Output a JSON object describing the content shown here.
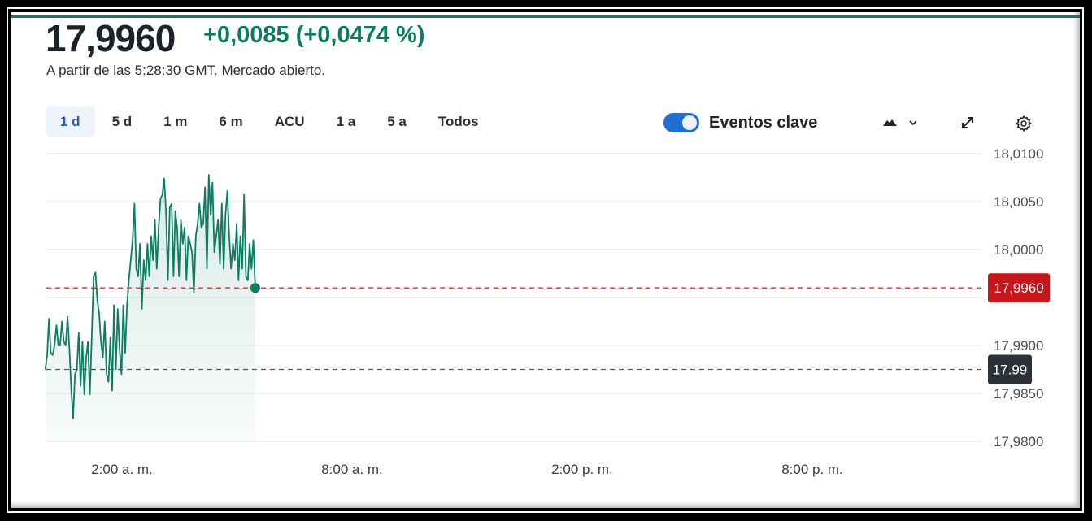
{
  "quote": {
    "price": "17,9960",
    "change": "+0,0085 (+0,0474 %)",
    "as_of": "A partir de las 5:28:30 GMT. Mercado abierto."
  },
  "ranges": [
    "1 d",
    "5 d",
    "1 m",
    "6 m",
    "ACU",
    "1 a",
    "5 a",
    "Todos"
  ],
  "active_range": "1 d",
  "toolbar": {
    "key_events_label": "Eventos clave",
    "key_events_on": true,
    "chart_type_icon": "mountain-icon",
    "expand_icon": "expand-arrows-icon",
    "settings_icon": "gear-icon"
  },
  "colors": {
    "line": "#0b7d62",
    "up": "#0b7d5e",
    "current_label": "#c8161d",
    "prev_close_label": "#2c3338",
    "toggle": "#1f6fd1"
  },
  "chart_data": {
    "type": "area",
    "x_start": "0:00",
    "x_end": "5:28:30",
    "x_ticks": [
      {
        "h": 2,
        "label": "2:00 a. m."
      },
      {
        "h": 8,
        "label": "8:00 a. m."
      },
      {
        "h": 14,
        "label": "2:00 p. m."
      },
      {
        "h": 20,
        "label": "8:00 p. m."
      }
    ],
    "y_ticks": [
      {
        "v": 18.01,
        "label": "18,0100"
      },
      {
        "v": 18.005,
        "label": "18,0050"
      },
      {
        "v": 18.0,
        "label": "18,0000"
      },
      {
        "v": 17.995,
        "label": ""
      },
      {
        "v": 17.99,
        "label": "17,9900"
      },
      {
        "v": 17.985,
        "label": "17,9850"
      },
      {
        "v": 17.98,
        "label": "17,9800"
      }
    ],
    "ylim": [
      17.98,
      18.01
    ],
    "grid": true,
    "current": {
      "value": 17.996,
      "label": "17,9960"
    },
    "previous_close": {
      "value": 17.9875,
      "label": "17.99"
    },
    "values": [
      17.9875,
      17.989,
      17.9928,
      17.9892,
      17.989,
      17.99,
      17.9921,
      17.99,
      17.99,
      17.9925,
      17.9904,
      17.99,
      17.993,
      17.9896,
      17.9853,
      17.9824,
      17.987,
      17.9875,
      17.9913,
      17.9858,
      17.9904,
      17.9849,
      17.9887,
      17.9904,
      17.9849,
      17.9908,
      17.9972,
      17.9976,
      17.9947,
      17.9934,
      17.9904,
      17.9887,
      17.9925,
      17.987,
      17.9862,
      17.9908,
      17.9853,
      17.9942,
      17.9875,
      17.9938,
      17.9896,
      17.987,
      17.9942,
      17.9892,
      17.9942,
      17.9968,
      17.9989,
      18.001,
      18.0048,
      17.998,
      17.9972,
      18.0006,
      17.9938,
      17.9989,
      17.9968,
      18.0006,
      17.9972,
      18.0014,
      17.9989,
      18.0031,
      17.998,
      18.0023,
      18.0053,
      18.0057,
      18.0074,
      18.004,
      17.9968,
      18.0044,
      18.0048,
      17.9972,
      18.004,
      18.0023,
      17.9972,
      18.0031,
      18.0006,
      18.0023,
      17.9968,
      18.0014,
      18.0006,
      17.9997,
      17.9955,
      18.0014,
      18.0027,
      18.0048,
      18.0023,
      18.0027,
      18.0065,
      17.998,
      18.0078,
      18.0036,
      18.007,
      17.9997,
      18.0014,
      18.0031,
      17.9985,
      18.0048,
      17.998,
      18.0036,
      18.0061,
      18.0014,
      17.998,
      18.0006,
      17.9989,
      18.0027,
      17.9968,
      18.0014,
      17.998,
      18.0057,
      17.9972,
      17.9968,
      18.0006,
      17.998,
      18.001,
      17.996
    ]
  }
}
